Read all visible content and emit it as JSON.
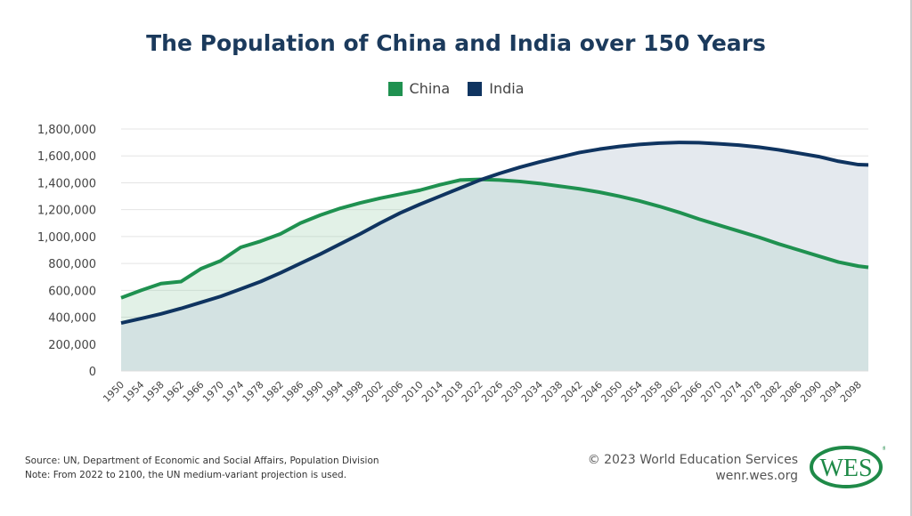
{
  "chart_data": {
    "type": "area",
    "title": "The Population of China and India over 150 Years",
    "xlabel": "",
    "ylabel": "",
    "ylim": [
      0,
      1800000
    ],
    "yticks": [
      0,
      200000,
      400000,
      600000,
      800000,
      1000000,
      1200000,
      1400000,
      1600000,
      1800000
    ],
    "ytick_labels": [
      "0",
      "200,000",
      "400,000",
      "600,000",
      "800,000",
      "1,000,000",
      "1,200,000",
      "1,400,000",
      "1,600,000",
      "1,800,000"
    ],
    "xlim": [
      1950,
      2100
    ],
    "xtick_labels": [
      "1950",
      "1954",
      "1958",
      "1962",
      "1966",
      "1970",
      "1974",
      "1978",
      "1982",
      "1986",
      "1990",
      "1994",
      "1998",
      "2002",
      "2006",
      "2010",
      "2014",
      "2018",
      "2022",
      "2026",
      "2030",
      "2034",
      "2038",
      "2042",
      "2046",
      "2050",
      "2054",
      "2058",
      "2062",
      "2066",
      "2070",
      "2074",
      "2078",
      "2082",
      "2086",
      "2090",
      "2094",
      "2098"
    ],
    "legend_position": "top-center",
    "grid": true,
    "x": [
      1950,
      1954,
      1958,
      1962,
      1966,
      1970,
      1974,
      1978,
      1982,
      1986,
      1990,
      1994,
      1998,
      2002,
      2006,
      2010,
      2014,
      2018,
      2022,
      2026,
      2030,
      2034,
      2038,
      2042,
      2046,
      2050,
      2054,
      2058,
      2062,
      2066,
      2070,
      2074,
      2078,
      2082,
      2086,
      2090,
      2094,
      2098,
      2100
    ],
    "series": [
      {
        "name": "China",
        "color": "#1f9150",
        "values": [
          544000,
          600000,
          650000,
          665000,
          760000,
          820000,
          920000,
          965000,
          1020000,
          1100000,
          1160000,
          1210000,
          1250000,
          1285000,
          1315000,
          1345000,
          1385000,
          1420000,
          1425000,
          1420000,
          1410000,
          1395000,
          1375000,
          1355000,
          1330000,
          1300000,
          1265000,
          1225000,
          1180000,
          1130000,
          1085000,
          1040000,
          995000,
          945000,
          900000,
          855000,
          810000,
          780000,
          771000
        ]
      },
      {
        "name": "India",
        "color": "#0f3460",
        "values": [
          357000,
          390000,
          425000,
          465000,
          510000,
          555000,
          610000,
          665000,
          730000,
          800000,
          870000,
          945000,
          1020000,
          1100000,
          1175000,
          1240000,
          1300000,
          1360000,
          1420000,
          1470000,
          1515000,
          1555000,
          1590000,
          1625000,
          1650000,
          1670000,
          1685000,
          1695000,
          1700000,
          1698000,
          1690000,
          1680000,
          1665000,
          1645000,
          1620000,
          1595000,
          1560000,
          1535000,
          1533000
        ]
      }
    ]
  },
  "footer": {
    "source": "Source: UN, Department of Economic and Social Affairs, Population Division",
    "note": "Note: From 2022 to 2100, the UN medium-variant projection is used.",
    "copyright": "© 2023 World Education Services",
    "website": "wenr.wes.org",
    "logo_text": "WES"
  }
}
